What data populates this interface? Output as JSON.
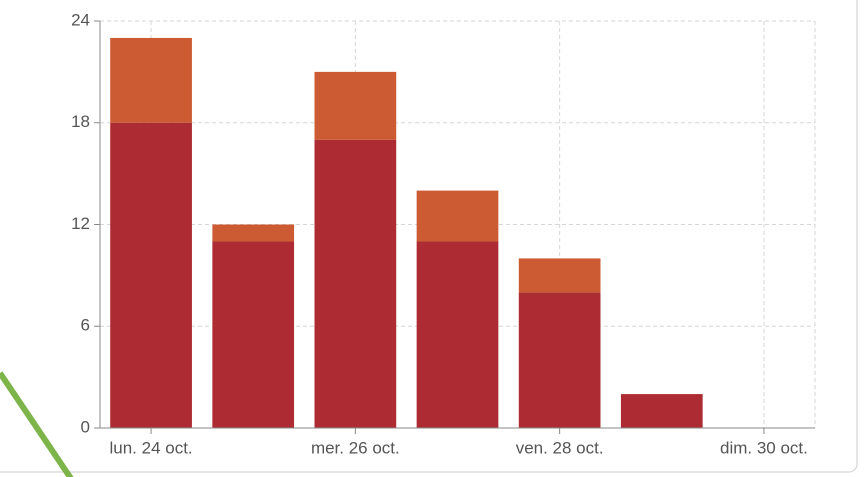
{
  "chart_data": {
    "type": "stacked_bar",
    "categories": [
      "lun. 24 oct.",
      null,
      "mer. 26 oct.",
      null,
      "ven. 28 oct.",
      null,
      "dim. 30 oct."
    ],
    "series": [
      {
        "color": "#ad2c33",
        "values": [
          18,
          11,
          17,
          11,
          8,
          2,
          0
        ]
      },
      {
        "color": "#cc5b33",
        "values": [
          5,
          1,
          4,
          3,
          2,
          0,
          0
        ]
      }
    ],
    "ylim": [
      0,
      24
    ],
    "yticks": [
      0,
      6,
      12,
      18,
      24
    ],
    "grid": true
  }
}
